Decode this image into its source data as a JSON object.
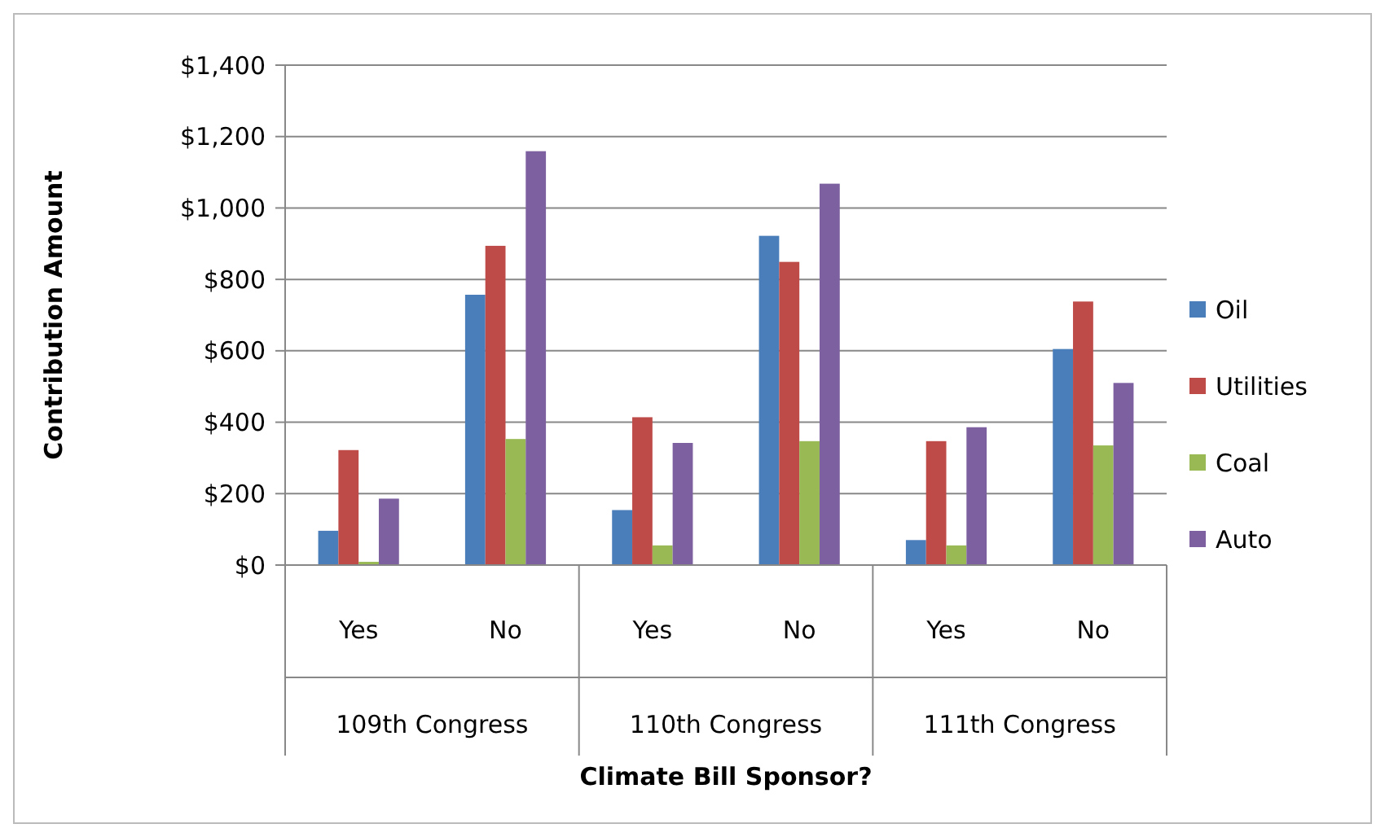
{
  "chart_data": {
    "type": "bar",
    "xlabel": "Climate Bill Sponsor?",
    "ylabel": "Contribution Amount",
    "categories": [
      "Yes",
      "No",
      "Yes",
      "No",
      "Yes",
      "No"
    ],
    "annotations": [
      "109th Congress",
      "110th Congress",
      "111th Congress"
    ],
    "series": [
      {
        "name": "Oil",
        "color": "#4a7ebb",
        "values": [
          96,
          757,
          154,
          922,
          70,
          605
        ]
      },
      {
        "name": "Utilities",
        "color": "#be4b48",
        "values": [
          322,
          894,
          414,
          849,
          347,
          738
        ]
      },
      {
        "name": "Coal",
        "color": "#98b954",
        "values": [
          9,
          353,
          55,
          347,
          55,
          335
        ]
      },
      {
        "name": "Auto",
        "color": "#7d60a0",
        "values": [
          186,
          1159,
          342,
          1068,
          386,
          510
        ]
      }
    ],
    "ylim": [
      0,
      1400
    ],
    "yticks": [
      {
        "value": 0,
        "label": "$0"
      },
      {
        "value": 200,
        "label": "$200"
      },
      {
        "value": 400,
        "label": "$400"
      },
      {
        "value": 600,
        "label": "$600"
      },
      {
        "value": 800,
        "label": "$800"
      },
      {
        "value": 1000,
        "label": "$1,000"
      },
      {
        "value": 1200,
        "label": "$1,200"
      },
      {
        "value": 1400,
        "label": "$1,400"
      }
    ],
    "grid": "y",
    "legend": "right"
  }
}
